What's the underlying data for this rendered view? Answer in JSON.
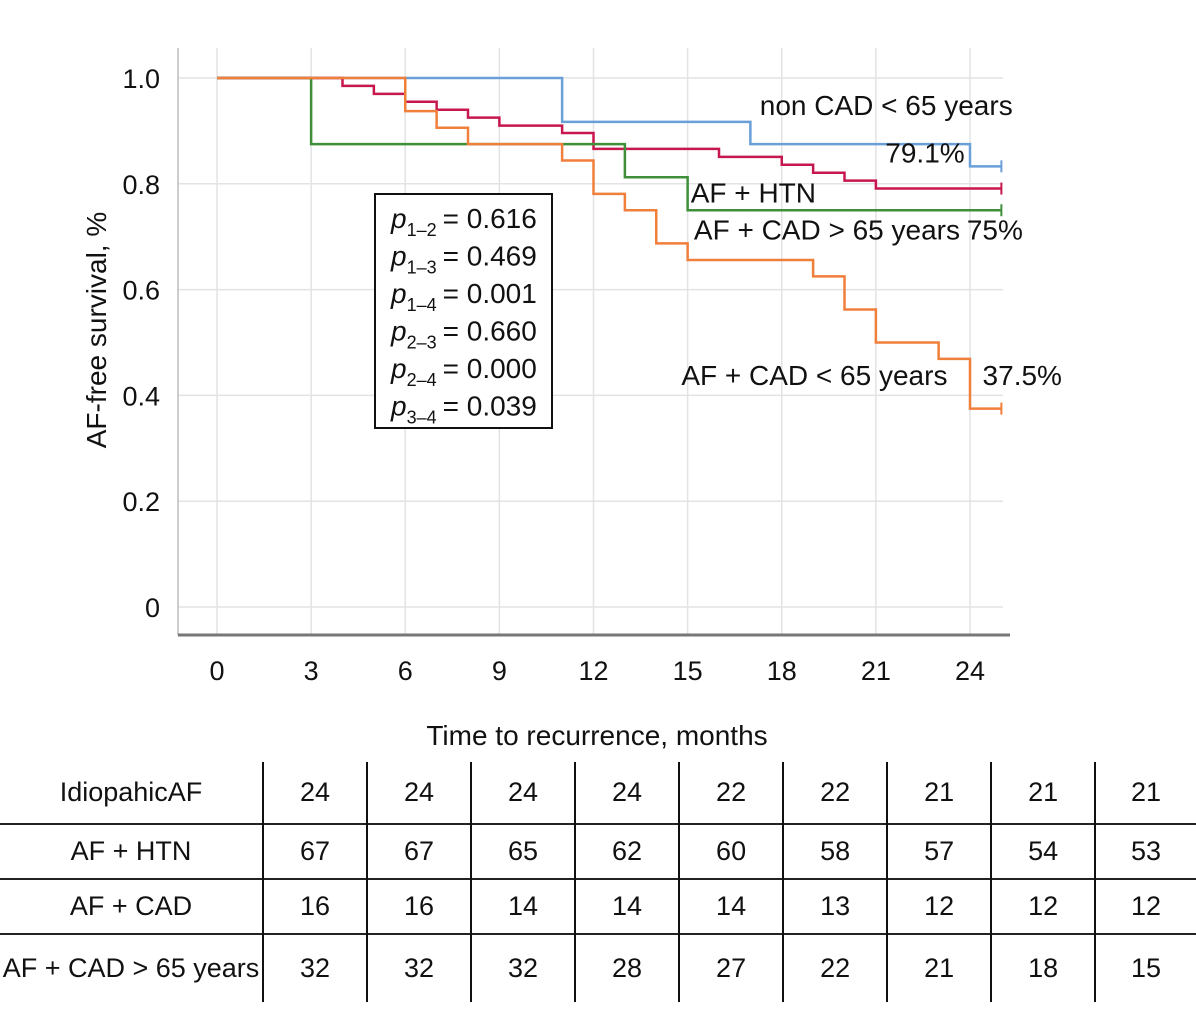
{
  "chart_data": {
    "type": "line",
    "subtype": "kaplan-meier-step",
    "title": "",
    "xlabel": "Time to recurrence, months",
    "ylabel": "AF-free survival, %",
    "xlim": [
      -1.2,
      25.5
    ],
    "ylim": [
      -0.05,
      1.05
    ],
    "x_ticks": [
      0,
      3,
      6,
      9,
      12,
      15,
      18,
      21,
      24
    ],
    "y_ticks": [
      {
        "value": 0,
        "label": "0"
      },
      {
        "value": 0.2,
        "label": "0.2"
      },
      {
        "value": 0.4,
        "label": "0.4"
      },
      {
        "value": 0.6,
        "label": "0.6"
      },
      {
        "value": 0.8,
        "label": "0.8"
      },
      {
        "value": 1.0,
        "label": "1.0"
      }
    ],
    "grid": true,
    "series": [
      {
        "name": "non CAD < 65 years",
        "color": "#6a9fd8",
        "end_x": 25,
        "steps": [
          [
            0,
            1.0
          ],
          [
            11,
            0.917
          ],
          [
            17,
            0.875
          ],
          [
            24,
            0.833
          ]
        ]
      },
      {
        "name": "AF + HTN",
        "color": "#c8174f",
        "end_x": 25,
        "steps": [
          [
            0,
            1.0
          ],
          [
            4,
            0.985
          ],
          [
            5,
            0.97
          ],
          [
            6,
            0.955
          ],
          [
            7,
            0.94
          ],
          [
            8,
            0.925
          ],
          [
            9,
            0.91
          ],
          [
            11,
            0.896
          ],
          [
            12,
            0.866
          ],
          [
            16,
            0.851
          ],
          [
            18,
            0.836
          ],
          [
            19,
            0.821
          ],
          [
            20,
            0.806
          ],
          [
            21,
            0.791
          ]
        ]
      },
      {
        "name": "AF + CAD > 65 years",
        "color": "#3f8f3a",
        "end_x": 25,
        "steps": [
          [
            0,
            1.0
          ],
          [
            3,
            0.875
          ],
          [
            13,
            0.8125
          ],
          [
            15,
            0.75
          ]
        ]
      },
      {
        "name": "AF + CAD < 65 years",
        "color": "#f07f3c",
        "end_x": 25,
        "steps": [
          [
            0,
            1.0
          ],
          [
            6,
            0.9375
          ],
          [
            7,
            0.906
          ],
          [
            8,
            0.875
          ],
          [
            11,
            0.844
          ],
          [
            12,
            0.781
          ],
          [
            13,
            0.75
          ],
          [
            14,
            0.6875
          ],
          [
            15,
            0.656
          ],
          [
            19,
            0.625
          ],
          [
            20,
            0.5625
          ],
          [
            21,
            0.5
          ],
          [
            23,
            0.469
          ],
          [
            24,
            0.375
          ]
        ]
      }
    ],
    "annotations": [
      {
        "text": "non CAD < 65 years",
        "x": 17.3,
        "y": 0.93
      },
      {
        "text": "79.1%",
        "x": 21.3,
        "y": 0.84
      },
      {
        "text": "AF + HTN",
        "x": 15.1,
        "y": 0.765
      },
      {
        "text": "AF + CAD > 65 years",
        "x": 15.2,
        "y": 0.695
      },
      {
        "text": "75%",
        "x": 23.9,
        "y": 0.695
      },
      {
        "text": "AF + CAD < 65 years",
        "x": 14.8,
        "y": 0.42
      },
      {
        "text": "37.5%",
        "x": 24.4,
        "y": 0.42
      }
    ],
    "p_values": [
      {
        "label": "p",
        "sub": "1–2",
        "value": "= 0.616"
      },
      {
        "label": "p",
        "sub": "1–3",
        "value": "= 0.469"
      },
      {
        "label": "p",
        "sub": "1–4",
        "value": "= 0.001"
      },
      {
        "label": "p",
        "sub": "2–3",
        "value": "= 0.660"
      },
      {
        "label": "p",
        "sub": "2–4",
        "value": "= 0.000"
      },
      {
        "label": "p",
        "sub": "3–4",
        "value": "= 0.039"
      }
    ]
  },
  "risk_table": {
    "rows": [
      {
        "label": "IdiopahicAF",
        "values": [
          "24",
          "24",
          "24",
          "24",
          "22",
          "22",
          "21",
          "21",
          "21"
        ]
      },
      {
        "label": "AF + HTN",
        "values": [
          "67",
          "67",
          "65",
          "62",
          "60",
          "58",
          "57",
          "54",
          "53"
        ]
      },
      {
        "label": "AF + CAD",
        "values": [
          "16",
          "16",
          "14",
          "14",
          "14",
          "13",
          "12",
          "12",
          "12"
        ]
      },
      {
        "label": "AF + CAD > 65 years",
        "values": [
          "32",
          "32",
          "32",
          "28",
          "27",
          "22",
          "21",
          "18",
          "15"
        ]
      }
    ]
  }
}
